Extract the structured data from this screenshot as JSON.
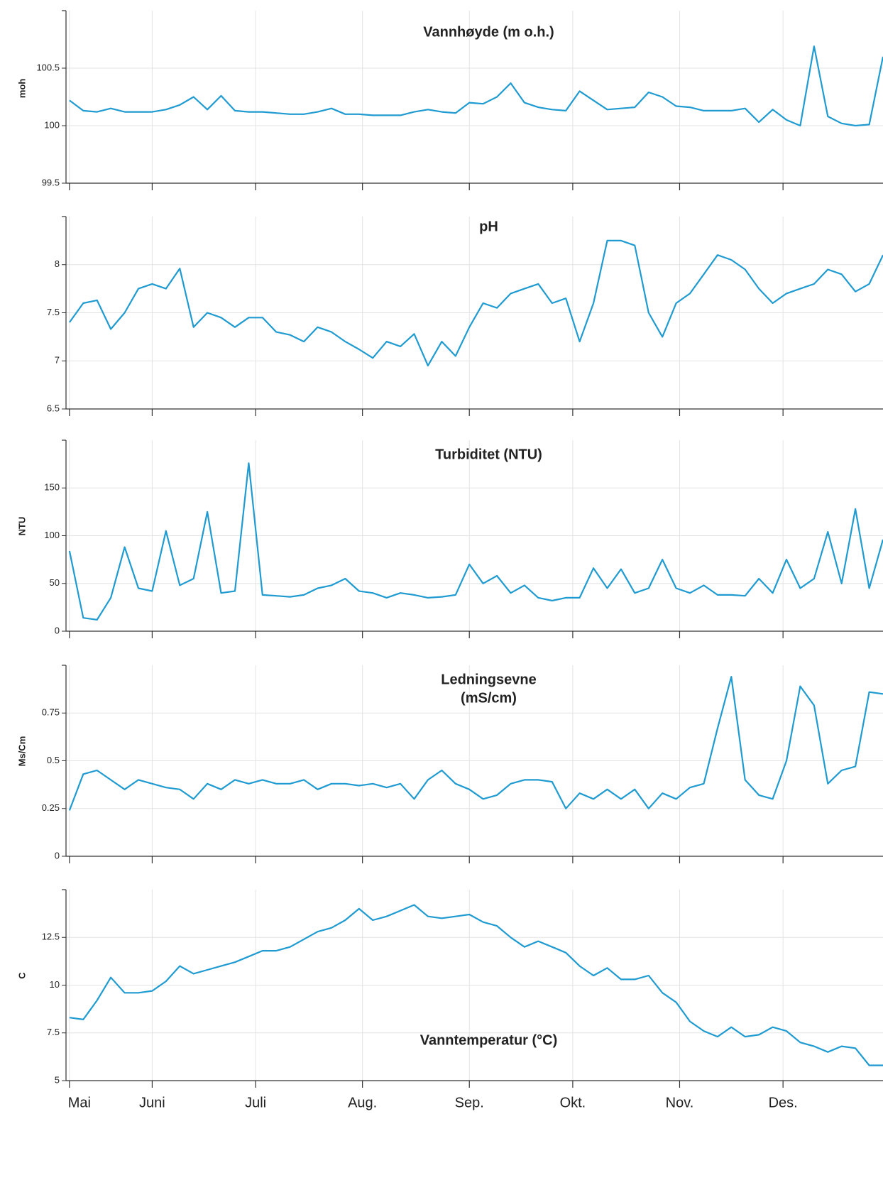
{
  "chart_data": [
    {
      "type": "line",
      "title": "Vannhøyde (m o.h.)",
      "y_label": "moh",
      "color": "#1f9bd1",
      "grid": true,
      "x": [
        7,
        11,
        15,
        19,
        23,
        27,
        31,
        35,
        39,
        43,
        47,
        51,
        55,
        59,
        63,
        67,
        71,
        75,
        79,
        83,
        87,
        91,
        95,
        99,
        103,
        107,
        111,
        115,
        119,
        123,
        127,
        131,
        135,
        139,
        143,
        147,
        151,
        155,
        159,
        163,
        167,
        171,
        175,
        179,
        183,
        187,
        191,
        195,
        199,
        203,
        207,
        211,
        215,
        219,
        223,
        227,
        231,
        235,
        239,
        243
      ],
      "values": [
        100.22,
        100.13,
        100.12,
        100.15,
        100.12,
        100.12,
        100.12,
        100.14,
        100.18,
        100.25,
        100.14,
        100.26,
        100.13,
        100.12,
        100.12,
        100.11,
        100.1,
        100.1,
        100.12,
        100.15,
        100.1,
        100.1,
        100.09,
        100.09,
        100.09,
        100.12,
        100.14,
        100.12,
        100.11,
        100.2,
        100.19,
        100.25,
        100.37,
        100.2,
        100.16,
        100.14,
        100.13,
        100.3,
        100.22,
        100.14,
        100.15,
        100.16,
        100.29,
        100.25,
        100.17,
        100.16,
        100.13,
        100.13,
        100.13,
        100.15,
        100.03,
        100.14,
        100.05,
        100.0,
        100.69,
        100.08,
        100.02,
        100.0,
        100.01,
        100.6
      ],
      "xlim": [
        6,
        243
      ],
      "ylim": [
        99.5,
        101
      ],
      "yticks": [
        99.5,
        100,
        100.5
      ]
    },
    {
      "type": "line",
      "title": "pH",
      "color": "#1f9bd1",
      "grid": true,
      "x": [
        7,
        11,
        15,
        19,
        23,
        27,
        31,
        35,
        39,
        43,
        47,
        51,
        55,
        59,
        63,
        67,
        71,
        75,
        79,
        83,
        87,
        91,
        95,
        99,
        103,
        107,
        111,
        115,
        119,
        123,
        127,
        131,
        135,
        139,
        143,
        147,
        151,
        155,
        159,
        163,
        167,
        171,
        175,
        179,
        183,
        187,
        191,
        195,
        199,
        203,
        207,
        211,
        215,
        219,
        223,
        227,
        231,
        235,
        239,
        243
      ],
      "values": [
        7.4,
        7.6,
        7.63,
        7.33,
        7.5,
        7.75,
        7.8,
        7.75,
        7.96,
        7.35,
        7.5,
        7.45,
        7.35,
        7.45,
        7.45,
        7.3,
        7.27,
        7.2,
        7.35,
        7.3,
        7.2,
        7.12,
        7.03,
        7.2,
        7.15,
        7.28,
        6.95,
        7.2,
        7.05,
        7.35,
        7.6,
        7.55,
        7.7,
        7.75,
        7.8,
        7.6,
        7.65,
        7.2,
        7.6,
        8.25,
        8.25,
        8.2,
        7.5,
        7.25,
        7.6,
        7.7,
        7.9,
        8.1,
        8.05,
        7.95,
        7.75,
        7.6,
        7.7,
        7.75,
        7.8,
        7.95,
        7.9,
        7.72,
        7.8,
        8.1
      ],
      "xlim": [
        6,
        243
      ],
      "ylim": [
        6.5,
        8.5
      ],
      "yticks": [
        6.5,
        7,
        7.5,
        8
      ]
    },
    {
      "type": "line",
      "title": "Turbiditet (NTU)",
      "y_label": "NTU",
      "color": "#1f9bd1",
      "grid": true,
      "x": [
        7,
        11,
        15,
        19,
        23,
        27,
        31,
        35,
        39,
        43,
        47,
        51,
        55,
        59,
        63,
        67,
        71,
        75,
        79,
        83,
        87,
        91,
        95,
        99,
        103,
        107,
        111,
        115,
        119,
        123,
        127,
        131,
        135,
        139,
        143,
        147,
        151,
        155,
        159,
        163,
        167,
        171,
        175,
        179,
        183,
        187,
        191,
        195,
        199,
        203,
        207,
        211,
        215,
        219,
        223,
        227,
        231,
        235,
        239,
        243
      ],
      "values": [
        84,
        14,
        12,
        35,
        88,
        45,
        42,
        105,
        48,
        55,
        125,
        40,
        42,
        176,
        38,
        37,
        36,
        38,
        45,
        48,
        55,
        42,
        40,
        35,
        40,
        38,
        35,
        36,
        38,
        70,
        50,
        58,
        40,
        48,
        35,
        32,
        35,
        35,
        66,
        45,
        65,
        40,
        45,
        75,
        45,
        40,
        48,
        38,
        38,
        37,
        55,
        40,
        75,
        45,
        55,
        104,
        50,
        128,
        45,
        96
      ],
      "xlim": [
        6,
        243
      ],
      "ylim": [
        0,
        200
      ],
      "yticks": [
        0,
        50,
        100,
        150
      ]
    },
    {
      "type": "line",
      "title": [
        "Ledningsevne",
        "(mS/cm)"
      ],
      "y_label": "Ms/Cm",
      "color": "#1f9bd1",
      "grid": true,
      "x": [
        7,
        11,
        15,
        19,
        23,
        27,
        31,
        35,
        39,
        43,
        47,
        51,
        55,
        59,
        63,
        67,
        71,
        75,
        79,
        83,
        87,
        91,
        95,
        99,
        103,
        107,
        111,
        115,
        119,
        123,
        127,
        131,
        135,
        139,
        143,
        147,
        151,
        155,
        159,
        163,
        167,
        171,
        175,
        179,
        183,
        187,
        191,
        195,
        199,
        203,
        207,
        211,
        215,
        219,
        223,
        227,
        231,
        235,
        239,
        243
      ],
      "values": [
        0.24,
        0.43,
        0.45,
        0.4,
        0.35,
        0.4,
        0.38,
        0.36,
        0.35,
        0.3,
        0.38,
        0.35,
        0.4,
        0.38,
        0.4,
        0.38,
        0.38,
        0.4,
        0.35,
        0.38,
        0.38,
        0.37,
        0.38,
        0.36,
        0.38,
        0.3,
        0.4,
        0.45,
        0.38,
        0.35,
        0.3,
        0.32,
        0.38,
        0.4,
        0.4,
        0.39,
        0.25,
        0.33,
        0.3,
        0.35,
        0.3,
        0.35,
        0.25,
        0.33,
        0.3,
        0.36,
        0.38,
        0.67,
        0.94,
        0.4,
        0.32,
        0.3,
        0.5,
        0.89,
        0.79,
        0.38,
        0.45,
        0.47,
        0.86,
        0.85
      ],
      "xlim": [
        6,
        243
      ],
      "ylim": [
        0,
        1
      ],
      "yticks": [
        0,
        0.25,
        0.5,
        0.75
      ]
    },
    {
      "type": "line",
      "title": "Vanntemperatur (°C)",
      "y_label": "C",
      "color": "#1f9bd1",
      "grid": true,
      "x": [
        7,
        11,
        15,
        19,
        23,
        27,
        31,
        35,
        39,
        43,
        47,
        51,
        55,
        59,
        63,
        67,
        71,
        75,
        79,
        83,
        87,
        91,
        95,
        99,
        103,
        107,
        111,
        115,
        119,
        123,
        127,
        131,
        135,
        139,
        143,
        147,
        151,
        155,
        159,
        163,
        167,
        171,
        175,
        179,
        183,
        187,
        191,
        195,
        199,
        203,
        207,
        211,
        215,
        219,
        223,
        227,
        231,
        235,
        239,
        243
      ],
      "values": [
        8.3,
        8.2,
        9.2,
        10.4,
        9.6,
        9.6,
        9.7,
        10.2,
        11.0,
        10.6,
        10.8,
        11.0,
        11.2,
        11.5,
        11.8,
        11.8,
        12.0,
        12.4,
        12.8,
        13.0,
        13.4,
        14.0,
        13.4,
        13.6,
        13.9,
        14.2,
        13.6,
        13.5,
        13.6,
        13.7,
        13.3,
        13.1,
        12.5,
        12.0,
        12.3,
        12.0,
        11.7,
        11.0,
        10.5,
        10.9,
        10.3,
        10.3,
        10.5,
        9.6,
        9.1,
        8.1,
        7.6,
        7.3,
        7.8,
        7.3,
        7.4,
        7.8,
        7.6,
        7.0,
        6.8,
        6.5,
        6.8,
        6.7,
        5.8,
        5.8
      ],
      "xlim": [
        6,
        243
      ],
      "ylim": [
        5,
        15
      ],
      "yticks": [
        5,
        7.5,
        10,
        12.5
      ],
      "xticks": [
        {
          "value": 7,
          "label": "Mai"
        },
        {
          "value": 31,
          "label": "Juni"
        },
        {
          "value": 61,
          "label": "Juli"
        },
        {
          "value": 92,
          "label": "Aug."
        },
        {
          "value": 123,
          "label": "Sep."
        },
        {
          "value": 153,
          "label": "Okt."
        },
        {
          "value": 184,
          "label": "Nov."
        },
        {
          "value": 214,
          "label": "Des."
        }
      ]
    }
  ]
}
